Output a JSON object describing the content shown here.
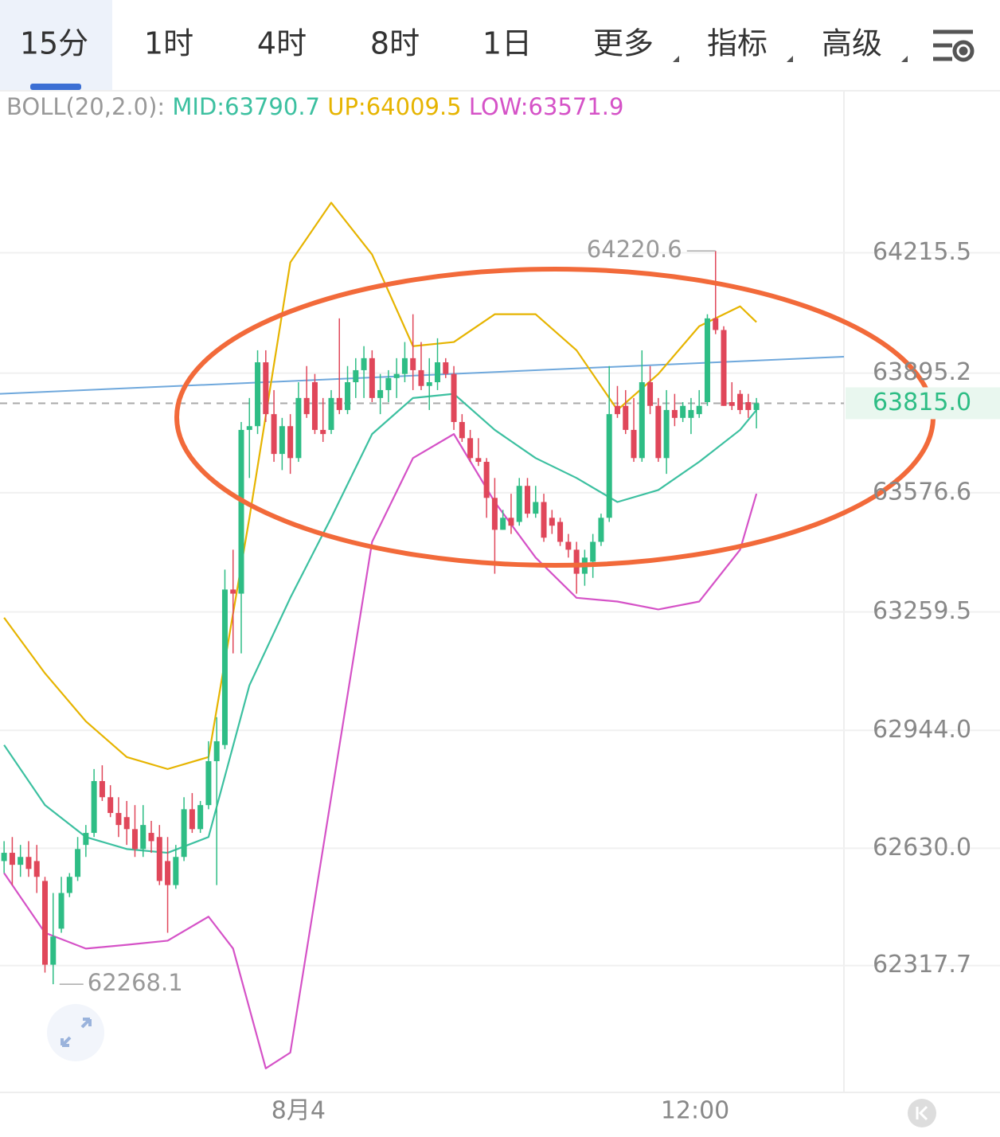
{
  "tabs": [
    "15分",
    "1时",
    "4时",
    "8时",
    "1日",
    "更多",
    "指标",
    "高级"
  ],
  "selected_tab": 0,
  "chart_data": {
    "type": "candlestick",
    "indicator_label": "BOLL(20,2.0):",
    "up_color": "#2ebd85",
    "down_color": "#e0475a",
    "open": [
      62596,
      62618,
      62586,
      62607,
      62596,
      62543,
      62320,
      62416,
      62511,
      62554,
      62639,
      62671,
      62809,
      62766,
      62724,
      62713,
      62681,
      62628,
      62671,
      62660,
      62596,
      62532,
      62607,
      62734,
      62681,
      62745,
      62862,
      62905,
      63319,
      63308,
      63744,
      63754,
      63924,
      63786,
      63680,
      63754,
      63669,
      63829,
      63871,
      63744,
      63744,
      63829,
      63797,
      63871,
      63903,
      63935,
      63829,
      63850,
      63882,
      63893,
      63935,
      63903,
      63861,
      63871,
      63924,
      63893,
      63765,
      63722,
      63669,
      63659,
      63563,
      63478,
      63510,
      63499,
      63595,
      63521,
      63552,
      63510,
      63499,
      63446,
      63425,
      63361,
      63393,
      63446,
      63510,
      63808,
      63808,
      63744,
      63669,
      63871,
      63808,
      63669,
      63797,
      63776,
      63776,
      63786,
      63818,
      64041,
      64010,
      63818,
      63840,
      63818,
      63797
    ],
    "high": [
      62649,
      62660,
      62639,
      62649,
      62639,
      62554,
      62511,
      62554,
      62564,
      62660,
      62692,
      62841,
      62851,
      62798,
      62766,
      62756,
      62745,
      62745,
      62703,
      62692,
      62660,
      62639,
      62766,
      62777,
      62756,
      62915,
      62979,
      63372,
      63425,
      63765,
      63829,
      63956,
      63956,
      63850,
      63776,
      63786,
      63871,
      63914,
      63893,
      63829,
      63850,
      64041,
      63914,
      63935,
      63967,
      63956,
      63893,
      63903,
      63935,
      63978,
      64052,
      63978,
      63935,
      63988,
      63935,
      63914,
      63786,
      63744,
      63722,
      63669,
      63616,
      63531,
      63574,
      63616,
      63616,
      63595,
      63574,
      63531,
      63510,
      63467,
      63446,
      63425,
      63467,
      63521,
      63914,
      63861,
      63850,
      63829,
      63956,
      63914,
      63829,
      63850,
      63840,
      63818,
      63829,
      63850,
      64052,
      64220.6,
      64020,
      63871,
      63850,
      63840,
      63829
    ],
    "low": [
      62564,
      62532,
      62554,
      62554,
      62511,
      62299,
      62268.1,
      62405,
      62500,
      62543,
      62607,
      62660,
      62756,
      62713,
      62660,
      62639,
      62607,
      62607,
      62618,
      62532,
      62405,
      62522,
      62596,
      62671,
      62671,
      62734,
      62532,
      62894,
      63149,
      63149,
      63616,
      63733,
      63765,
      63659,
      63637,
      63627,
      63659,
      63776,
      63733,
      63712,
      63733,
      63786,
      63786,
      63829,
      63829,
      63818,
      63786,
      63818,
      63829,
      63871,
      63850,
      63850,
      63797,
      63850,
      63882,
      63744,
      63712,
      63659,
      63648,
      63510,
      63361,
      63478,
      63467,
      63489,
      63510,
      63510,
      63446,
      63467,
      63435,
      63404,
      63308,
      63329,
      63350,
      63435,
      63499,
      63776,
      63733,
      63659,
      63659,
      63786,
      63659,
      63627,
      63754,
      63765,
      63733,
      63776,
      63808,
      63999,
      63808,
      63797,
      63786,
      63776,
      63748
    ],
    "close": [
      62618,
      62586,
      62607,
      62575,
      62554,
      62320,
      62395,
      62511,
      62554,
      62628,
      62671,
      62809,
      62766,
      62724,
      62692,
      62681,
      62628,
      62692,
      62649,
      62543,
      62532,
      62607,
      62734,
      62681,
      62745,
      62862,
      62915,
      63319,
      63308,
      63744,
      63754,
      63924,
      63786,
      63680,
      63754,
      63669,
      63829,
      63786,
      63744,
      63733,
      63829,
      63797,
      63871,
      63903,
      63935,
      63829,
      63850,
      63882,
      63893,
      63935,
      63903,
      63861,
      63871,
      63924,
      63893,
      63765,
      63722,
      63669,
      63659,
      63563,
      63478,
      63510,
      63489,
      63595,
      63521,
      63552,
      63457,
      63489,
      63446,
      63425,
      63361,
      63404,
      63446,
      63510,
      63786,
      63786,
      63744,
      63669,
      63871,
      63808,
      63669,
      63797,
      63776,
      63808,
      63797,
      63808,
      64041,
      64010,
      63808,
      63808,
      63797,
      63797,
      63815
    ],
    "series": [
      {
        "name": "MID:63790.7",
        "color": "#3cc0a0",
        "x": [
          0,
          5,
          10,
          15,
          20,
          25,
          30,
          35,
          40,
          45,
          50,
          55,
          60,
          65,
          70,
          75,
          80,
          85,
          90,
          92
        ],
        "values": [
          62905,
          62745,
          62660,
          62628,
          62618,
          62660,
          63064,
          63297,
          63510,
          63733,
          63829,
          63840,
          63744,
          63669,
          63616,
          63552,
          63584,
          63659,
          63744,
          63797
        ]
      },
      {
        "name": "UP:64009.5",
        "color": "#e6b400",
        "x": [
          0,
          5,
          10,
          15,
          20,
          25,
          30,
          35,
          40,
          45,
          50,
          55,
          60,
          65,
          70,
          75,
          80,
          85,
          90,
          92
        ],
        "values": [
          63244,
          63096,
          62968,
          62873,
          62841,
          62873,
          63510,
          64190,
          64349,
          64211,
          63967,
          63978,
          64052,
          64052,
          63956,
          63797,
          63893,
          64020,
          64073,
          64031
        ]
      },
      {
        "name": "LOW:63571.9",
        "color": "#d552c7",
        "x": [
          0,
          5,
          10,
          15,
          20,
          25,
          28,
          32,
          35,
          40,
          45,
          50,
          55,
          60,
          65,
          70,
          75,
          80,
          85,
          90,
          92
        ],
        "values": [
          62564,
          62405,
          62363,
          62373,
          62384,
          62448,
          62363,
          62044,
          62086,
          62766,
          63446,
          63669,
          63733,
          63552,
          63404,
          63297,
          63287,
          63266,
          63287,
          63425,
          63574
        ]
      }
    ],
    "trendline": {
      "color": "#6fa8dc",
      "x": [
        -0.5,
        102.7
      ],
      "values": [
        63840,
        63939
      ]
    },
    "current_price": 63815,
    "current_price_label": "63815.0",
    "xlim": [
      -0.5,
      102.7
    ],
    "xticks": [
      {
        "value": 36,
        "label": "8月4"
      },
      {
        "value": 84.5,
        "label": "12:00"
      }
    ],
    "ylim": [
      61980,
      64647
    ],
    "yticks": [
      64215.5,
      63895.2,
      63576.6,
      63259.5,
      {
        "value": 62944,
        "label": "62944.0"
      },
      {
        "value": 62630,
        "label": "62630.0"
      },
      62317.7
    ],
    "grid": true
  }
}
